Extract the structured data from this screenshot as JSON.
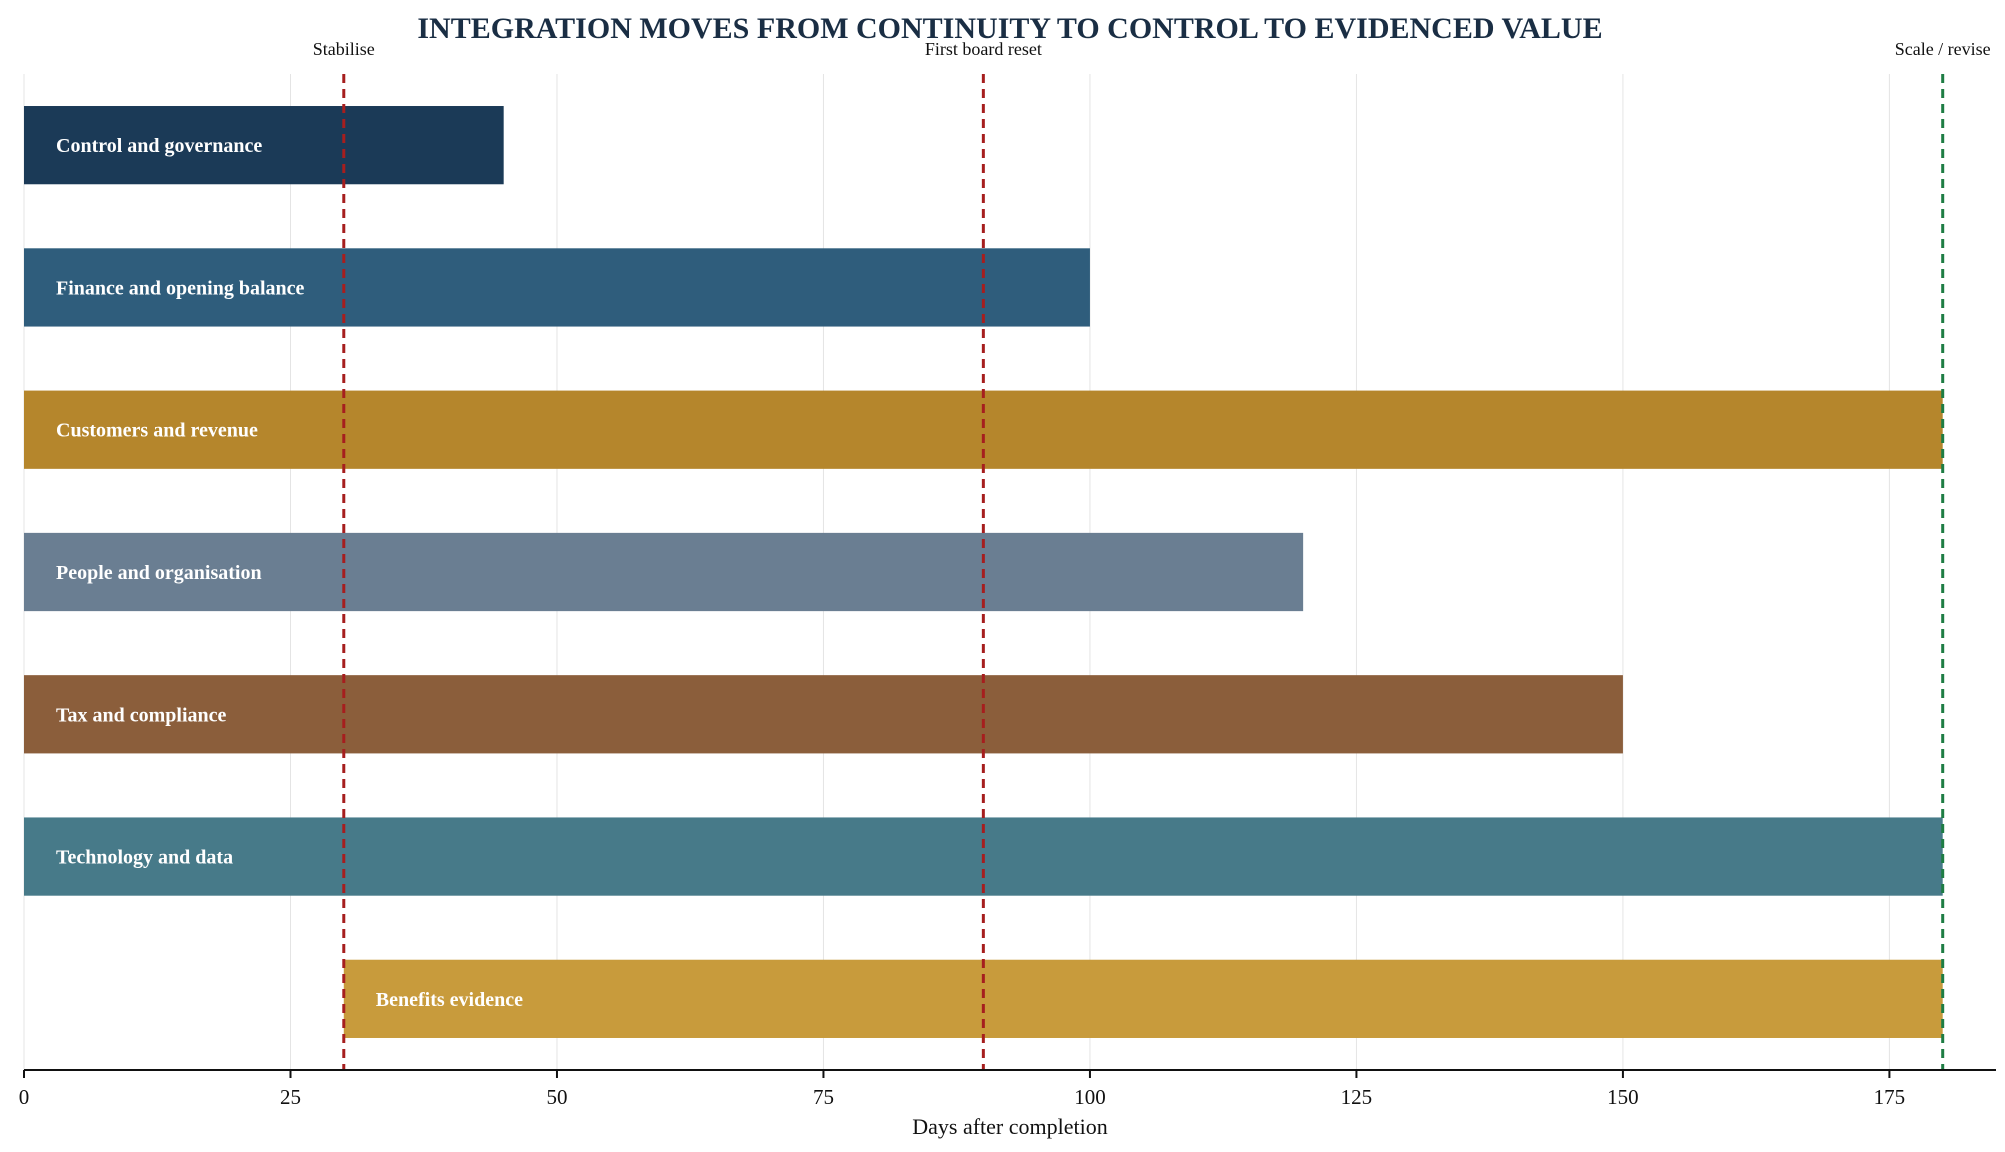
{
  "chart_data": {
    "type": "bar",
    "orientation": "horizontal",
    "title": "INTEGRATION MOVES FROM CONTINUITY TO CONTROL TO EVIDENCED VALUE",
    "xlabel": "Days after completion",
    "ylabel": "",
    "xlim": [
      0,
      185
    ],
    "xticks": [
      0,
      25,
      50,
      75,
      100,
      125,
      150,
      175
    ],
    "grid": "vertical",
    "legend": "none",
    "workstreams": [
      {
        "name": "Control and governance",
        "start": 0,
        "end": 45,
        "color": "#1b3a57"
      },
      {
        "name": "Finance and opening balance",
        "start": 0,
        "end": 100,
        "color": "#2f5d7c"
      },
      {
        "name": "Customers and revenue",
        "start": 0,
        "end": 180,
        "color": "#b5862c"
      },
      {
        "name": "People and organisation",
        "start": 0,
        "end": 120,
        "color": "#6a7e92"
      },
      {
        "name": "Tax and compliance",
        "start": 0,
        "end": 150,
        "color": "#8b5e3b"
      },
      {
        "name": "Technology and data",
        "start": 0,
        "end": 180,
        "color": "#477a89"
      },
      {
        "name": "Benefits evidence",
        "start": 30,
        "end": 180,
        "color": "#c89b3c"
      }
    ],
    "markers": [
      {
        "label": "Stabilise",
        "day": 30,
        "color": "#a61e1e"
      },
      {
        "label": "First board reset",
        "day": 90,
        "color": "#a61e1e"
      },
      {
        "label": "Scale / revise",
        "day": 180,
        "color": "#1e7d44"
      }
    ]
  }
}
